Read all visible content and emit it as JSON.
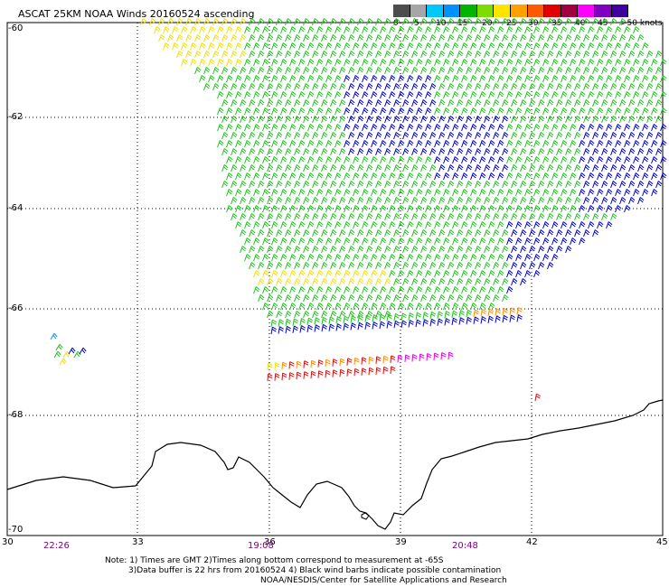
{
  "title": "ASCAT 25KM NOAA Winds 20160524 ascending",
  "legend": {
    "labels": [
      "0",
      "5",
      "10",
      "15",
      "20",
      "25",
      "30",
      "35",
      "40",
      "45",
      ">50 knots"
    ],
    "colors": [
      "#4d4d4d",
      "#a6a6a6",
      "#00c8ff",
      "#0090ff",
      "#00b400",
      "#7ddc00",
      "#ffe400",
      "#ffa000",
      "#ff5a00",
      "#e00000",
      "#a00040",
      "#ff00ff",
      "#8000c0",
      "#4000a0"
    ]
  },
  "lat_labels": [
    "-60",
    "-62",
    "-64",
    "-66",
    "-68",
    "-70"
  ],
  "lon_labels": [
    "30",
    "33",
    "36",
    "39",
    "42",
    "45"
  ],
  "time_labels": [
    "22:26",
    "19:08",
    "20:48"
  ],
  "notes": [
    "Note: 1) Times are GMT 2)Times along bottom correspond to measurement at -65S",
    "3)Data buffer is 22 hrs from 20160524 4) Black wind barbs indicate possible contamination",
    "NOAA/NESDIS/Center for Satellite Applications and Research"
  ],
  "colors": {
    "green": "#1fc21f",
    "blue": "#0000c8",
    "lightblue": "#0096ff",
    "yellow": "#f0e000",
    "orange": "#ff8c00",
    "red": "#d01010",
    "magenta": "#e000e0",
    "coast": "#000000"
  }
}
